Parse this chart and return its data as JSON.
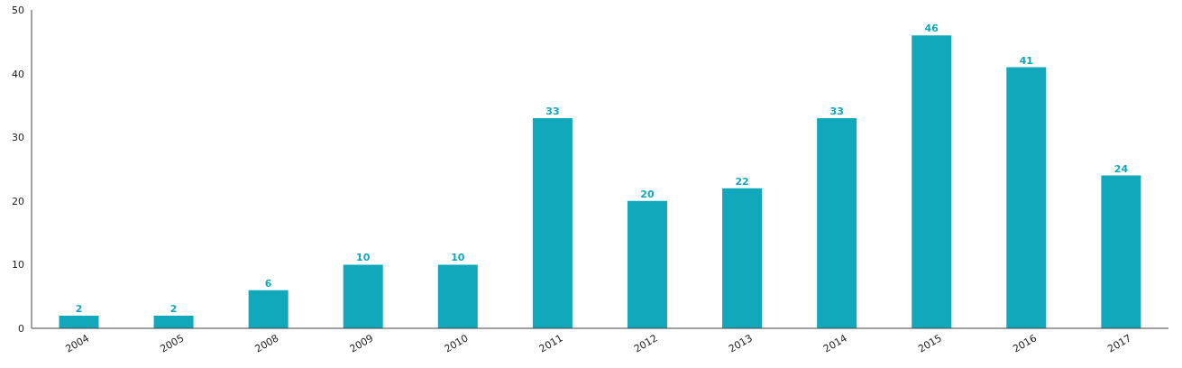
{
  "chart_data": {
    "type": "bar",
    "categories": [
      "2004",
      "2005",
      "2008",
      "2009",
      "2010",
      "2011",
      "2012",
      "2013",
      "2014",
      "2015",
      "2016",
      "2017"
    ],
    "values": [
      2,
      2,
      6,
      10,
      10,
      33,
      20,
      22,
      33,
      46,
      41,
      24
    ],
    "color": "#12a8bb",
    "ylim": [
      0,
      50
    ],
    "yticks": [
      0,
      10,
      20,
      30,
      40,
      50
    ],
    "grid": false,
    "data_labels": true
  }
}
